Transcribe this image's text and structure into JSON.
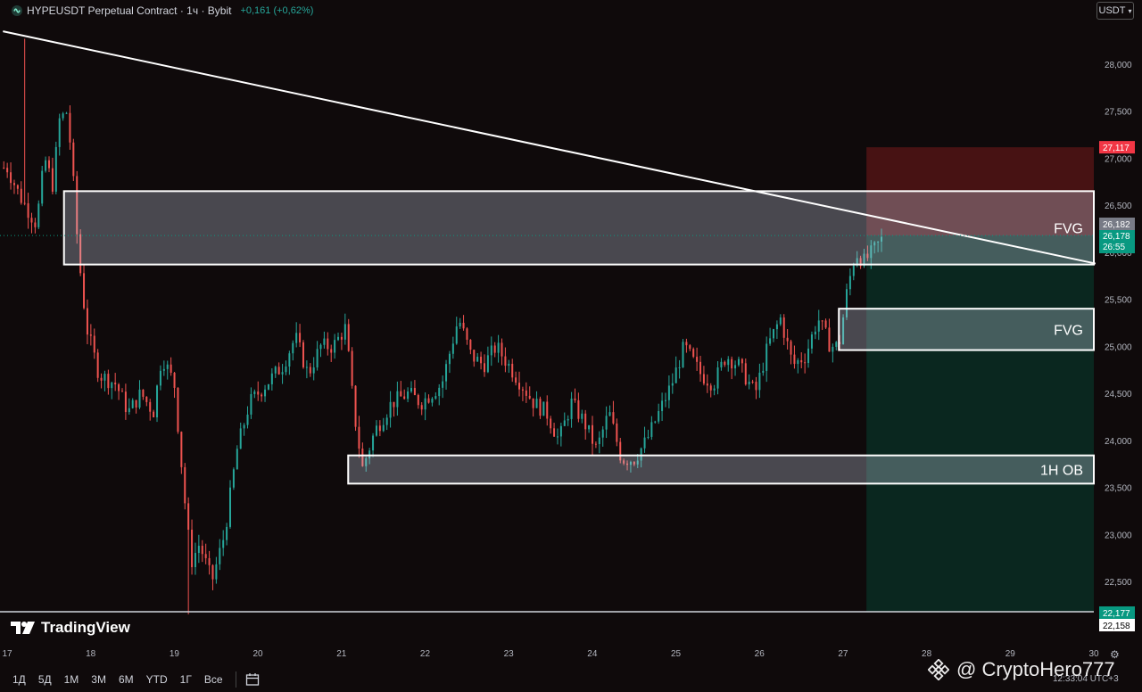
{
  "header": {
    "title": "HYPEUSDT Perpetual Contract · 1ч · Bybit",
    "change": "+0,161 (+0,62%)",
    "symbol_icon": "hype-logo-icon"
  },
  "currency_button": {
    "label": "USDT"
  },
  "price_axis": {
    "ticks": [
      "28,000",
      "27,500",
      "27,000",
      "26,500",
      "26,000",
      "25,500",
      "25,000",
      "24,500",
      "24,000",
      "23,500",
      "23,000",
      "22,500"
    ],
    "tick_values": [
      28.0,
      27.5,
      27.0,
      26.5,
      26.0,
      25.5,
      25.0,
      24.5,
      24.0,
      23.5,
      23.0,
      22.5
    ],
    "badges": {
      "target": {
        "text": "27,117",
        "value": 27.117,
        "color": "#f23645"
      },
      "upper": {
        "text": "26,182",
        "value": 26.182,
        "color": "#787b86"
      },
      "last": {
        "text": "26,178",
        "value": 26.178,
        "color": "#089981"
      },
      "countdown": {
        "text": "26:55"
      },
      "stop": {
        "text": "22,177",
        "value": 22.177,
        "color": "#089981"
      },
      "stop_alt": {
        "text": "22,158",
        "value": 22.158,
        "color": "#ffffff"
      }
    }
  },
  "time_axis": {
    "labels": [
      "17",
      "18",
      "19",
      "20",
      "21",
      "22",
      "23",
      "24",
      "25",
      "26",
      "27",
      "28",
      "29",
      "30"
    ],
    "day_values": [
      17,
      18,
      19,
      20,
      21,
      22,
      23,
      24,
      25,
      26,
      27,
      28,
      29,
      30
    ]
  },
  "zones": [
    {
      "label": "FVG",
      "top": 26.65,
      "bottom": 25.87,
      "from_day": 17.68,
      "to_day": 30.0,
      "fill": "rgba(210,218,240,0.30)"
    },
    {
      "label": "FVG",
      "top": 25.4,
      "bottom": 24.96,
      "from_day": 26.95,
      "to_day": 30.0,
      "fill": "rgba(210,218,240,0.30)"
    },
    {
      "label": "1H OB",
      "top": 23.84,
      "bottom": 23.54,
      "from_day": 21.08,
      "to_day": 30.0,
      "fill": "rgba(210,218,240,0.30)"
    }
  ],
  "trendline": {
    "from_day": 16.95,
    "from_price": 28.35,
    "to_day": 30.02,
    "to_price": 25.88
  },
  "position": {
    "entry": 26.178,
    "target": 27.117,
    "stop": 22.177,
    "from_day": 27.28,
    "to_day": 30.0,
    "profit_color": "rgba(178,34,34,0.35)",
    "loss_color": "rgba(0,110,80,0.30)"
  },
  "chart_data": {
    "type": "candlestick",
    "symbol": "HYPEUSDT",
    "interval": "1h",
    "x_label": "",
    "y_label": "",
    "ylim": [
      22.15,
      28.4
    ],
    "xlim": [
      16.95,
      30.0
    ],
    "path_days": [
      17.0,
      17.15,
      17.35,
      17.45,
      17.55,
      17.62,
      17.72,
      17.78,
      17.85,
      17.95,
      18.1,
      18.3,
      18.45,
      18.6,
      18.75,
      18.85,
      19.0,
      19.12,
      19.2,
      19.3,
      19.45,
      19.6,
      19.75,
      19.9,
      20.1,
      20.3,
      20.45,
      20.6,
      20.75,
      20.9,
      21.05,
      21.15,
      21.25,
      21.4,
      21.6,
      21.8,
      21.95,
      22.2,
      22.4,
      22.55,
      22.7,
      22.85,
      23.0,
      23.15,
      23.3,
      23.45,
      23.6,
      23.75,
      23.9,
      24.05,
      24.2,
      24.35,
      24.5,
      24.65,
      24.8,
      24.95,
      25.1,
      25.3,
      25.45,
      25.6,
      25.75,
      25.95,
      26.1,
      26.25,
      26.4,
      26.55,
      26.7,
      26.85,
      26.95,
      27.05,
      27.15,
      27.25,
      27.35,
      27.5
    ],
    "path_prices": [
      26.9,
      26.6,
      26.3,
      27.0,
      26.7,
      27.4,
      27.5,
      26.9,
      26.0,
      25.2,
      24.7,
      24.6,
      24.3,
      24.5,
      24.3,
      24.9,
      24.6,
      23.4,
      22.7,
      22.9,
      22.5,
      23.0,
      23.9,
      24.4,
      24.6,
      24.8,
      25.1,
      24.7,
      25.0,
      25.0,
      25.2,
      24.3,
      23.7,
      24.1,
      24.4,
      24.5,
      24.4,
      24.6,
      25.3,
      24.9,
      24.8,
      25.0,
      24.8,
      24.6,
      24.4,
      24.3,
      24.0,
      24.4,
      24.2,
      23.9,
      24.3,
      23.8,
      23.8,
      24.0,
      24.3,
      24.6,
      25.0,
      24.7,
      24.6,
      24.9,
      24.8,
      24.5,
      25.0,
      25.3,
      24.8,
      24.9,
      25.3,
      25.0,
      25.0,
      25.6,
      26.0,
      25.9,
      26.0,
      26.18
    ],
    "extremes": {
      "high": 28.27,
      "low": 22.15
    }
  },
  "branding": {
    "logo_text": "TradingView"
  },
  "toolbar": {
    "timeframes": [
      "1Д",
      "5Д",
      "1М",
      "3М",
      "6М",
      "YTD",
      "1Г",
      "Все"
    ]
  },
  "time_readout": "12:33:04 UTC+3",
  "watermark": "@ CryptoHero777"
}
